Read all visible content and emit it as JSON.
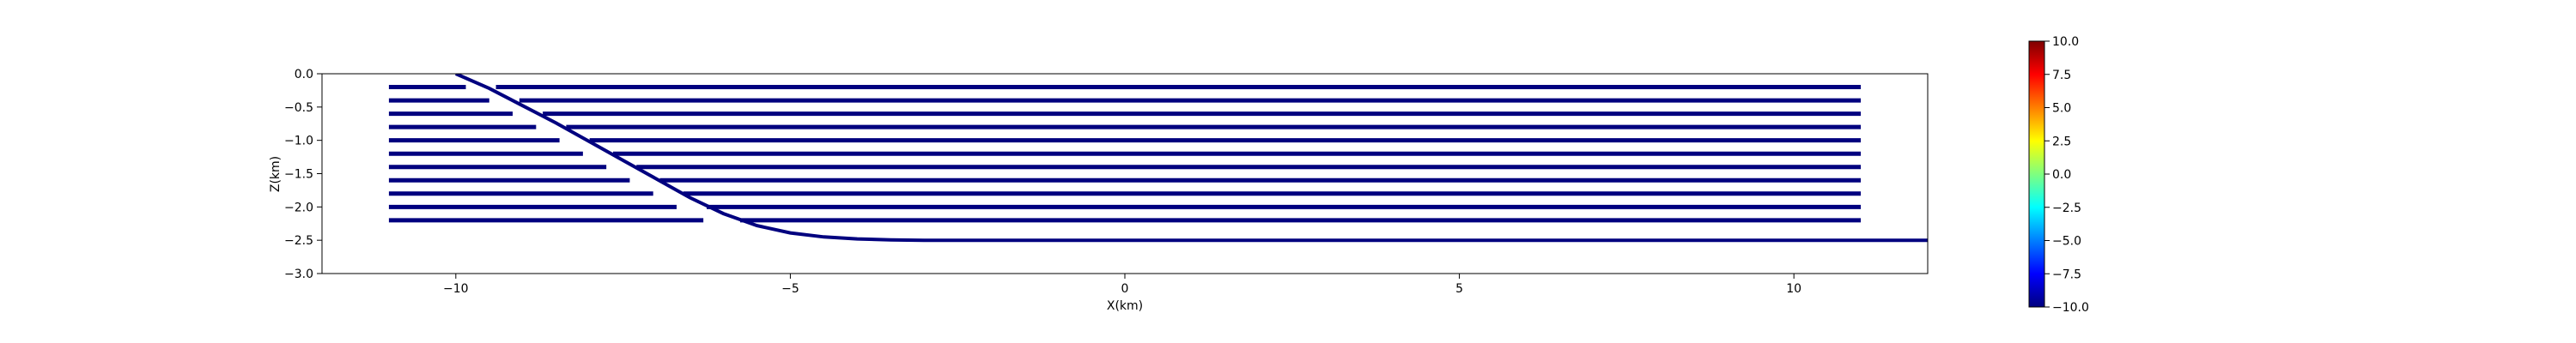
{
  "chart_data": {
    "type": "line",
    "title": "",
    "xlabel": "X(km)",
    "ylabel": "Z(km)",
    "xlim": [
      -12,
      12
    ],
    "ylim": [
      -3.0,
      0.0
    ],
    "xticks": [
      -10,
      -5,
      0,
      5,
      10
    ],
    "xtick_labels": [
      "−10",
      "−5",
      "0",
      "5",
      "10"
    ],
    "yticks": [
      0.0,
      -0.5,
      -1.0,
      -1.5,
      -2.0,
      -2.5,
      -3.0
    ],
    "ytick_labels": [
      "0.0",
      "−0.5",
      "−1.0",
      "−1.5",
      "−2.0",
      "−2.5",
      "−3.0"
    ],
    "line_color": "#00007f",
    "fault": {
      "x": [
        -10.0,
        -9.5,
        -9.0,
        -8.5,
        -8.0,
        -7.5,
        -7.0,
        -6.5,
        -6.0,
        -5.5,
        -5.0,
        -4.5,
        -4.0,
        -3.5,
        -3.0,
        -2.0,
        0.0,
        5.0,
        10.0,
        12.0
      ],
      "z": [
        0.0,
        -0.22,
        -0.48,
        -0.74,
        -1.02,
        -1.3,
        -1.58,
        -1.86,
        -2.1,
        -2.28,
        -2.39,
        -2.45,
        -2.48,
        -2.495,
        -2.5,
        -2.5,
        -2.5,
        -2.5,
        -2.5,
        -2.5
      ]
    },
    "layers": {
      "x_left": -11.0,
      "x_right": 11.0,
      "z": [
        -0.2,
        -0.4,
        -0.6,
        -0.8,
        -1.0,
        -1.2,
        -1.4,
        -1.6,
        -1.8,
        -2.0,
        -2.2
      ],
      "gap_left": [
        -9.85,
        -9.5,
        -9.15,
        -8.8,
        -8.45,
        -8.1,
        -7.75,
        -7.4,
        -7.05,
        -6.7,
        -6.3
      ],
      "gap_right": [
        -9.4,
        -9.05,
        -8.7,
        -8.35,
        -8.0,
        -7.65,
        -7.3,
        -6.95,
        -6.6,
        -6.25,
        -5.75
      ]
    },
    "colorbar": {
      "range": [
        -10.0,
        10.0
      ],
      "ticks": [
        10.0,
        7.5,
        5.0,
        2.5,
        0.0,
        -2.5,
        -5.0,
        -7.5,
        -10.0
      ],
      "tick_labels": [
        "10.0",
        "7.5",
        "5.0",
        "2.5",
        "0.0",
        "−2.5",
        "−5.0",
        "−7.5",
        "−10.0"
      ],
      "colormap": "jet",
      "colors": [
        "#00007f",
        "#0000ff",
        "#007fff",
        "#00ffff",
        "#7fff7f",
        "#ffff00",
        "#ff7f00",
        "#ff0000",
        "#7f0000"
      ]
    }
  }
}
